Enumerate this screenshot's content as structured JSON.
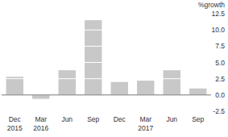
{
  "chart_data": {
    "type": "bar",
    "y_label": "%growth",
    "categories": [
      "Dec 2015",
      "Mar 2016",
      "Jun",
      "Sep",
      "Dec",
      "Mar 2017",
      "Jun",
      "Sep"
    ],
    "values": [
      2.8,
      -0.6,
      3.8,
      11.5,
      2.0,
      2.2,
      3.8,
      1.0
    ],
    "color": "#c8c8c8",
    "ylim": [
      -2.5,
      12.5
    ],
    "yticks": [
      -2.5,
      {
        "value": 0,
        "label": "0.0"
      },
      2.5,
      {
        "value": 5,
        "label": "5.0"
      },
      7.5,
      {
        "value": 10,
        "label": "10.0"
      },
      12.5
    ],
    "grid": true
  }
}
